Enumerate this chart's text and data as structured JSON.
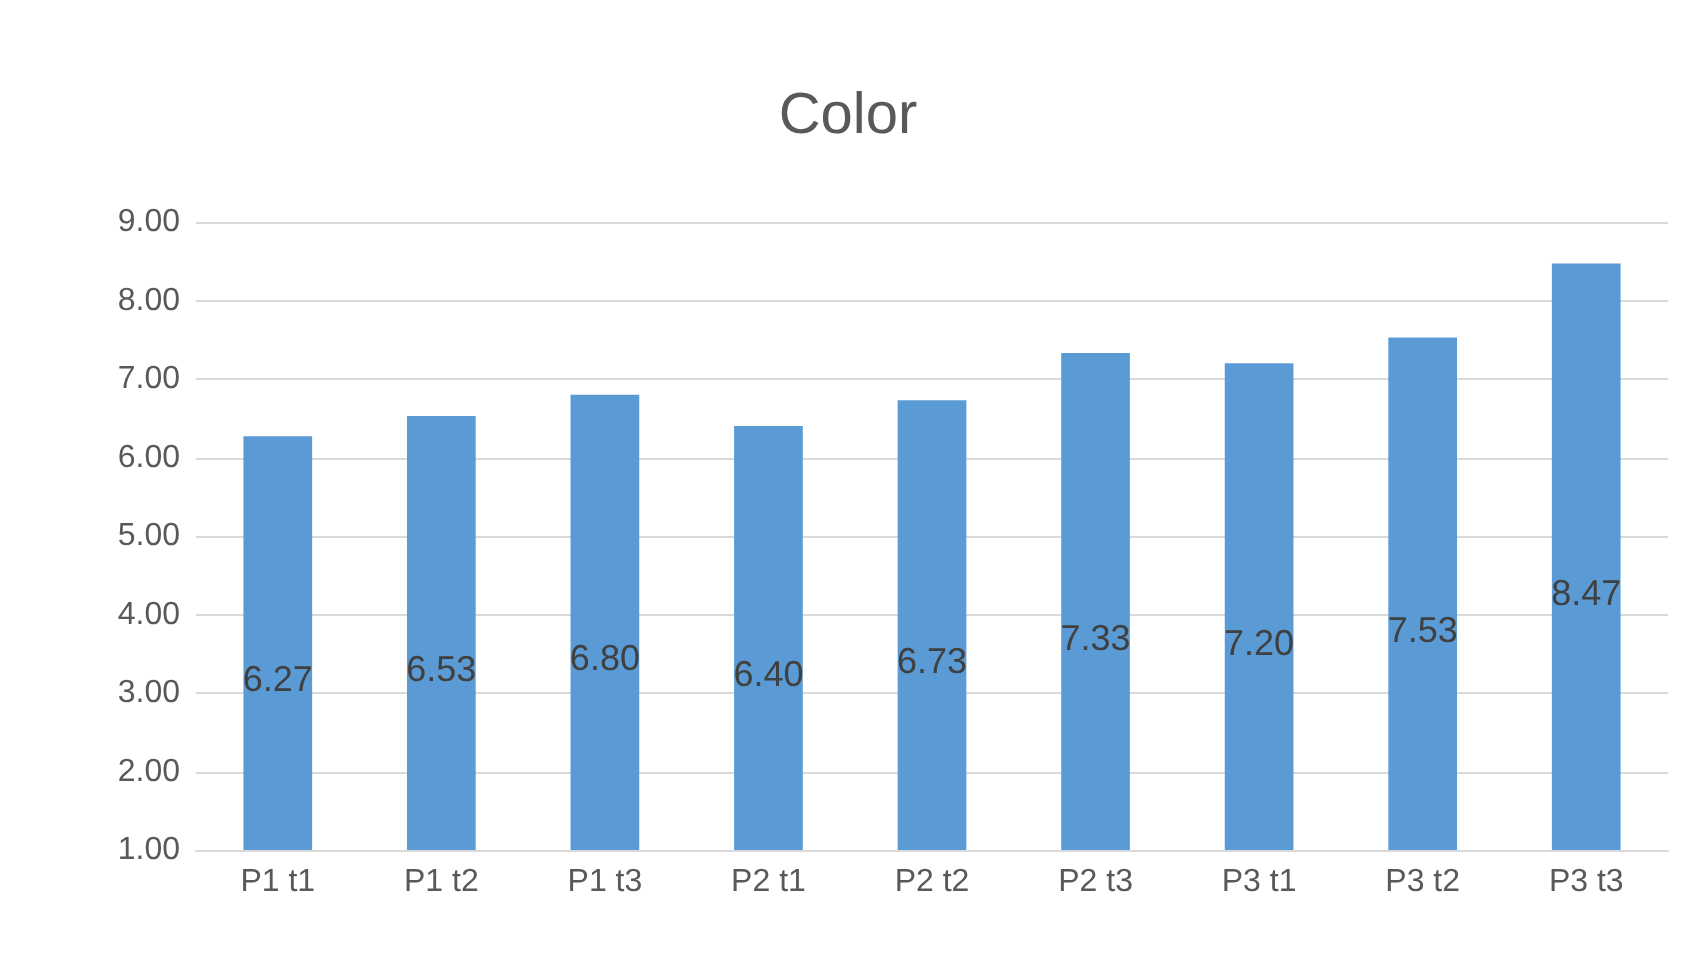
{
  "chart_data": {
    "type": "bar",
    "title": "Color",
    "categories": [
      "P1 t1",
      "P1 t2",
      "P1 t3",
      "P2 t1",
      "P2 t2",
      "P2 t3",
      "P3 t1",
      "P3 t2",
      "P3 t3"
    ],
    "values": [
      6.27,
      6.53,
      6.8,
      6.4,
      6.73,
      7.33,
      7.2,
      7.53,
      8.47
    ],
    "value_labels": [
      "6.27",
      "6.53",
      "6.80",
      "6.40",
      "6.73",
      "7.33",
      "7.20",
      "7.53",
      "8.47"
    ],
    "color": "#5b9bd5",
    "ylim": [
      1,
      9
    ],
    "yticks": [
      {
        "value": 1,
        "label": "1.00"
      },
      {
        "value": 2,
        "label": "2.00"
      },
      {
        "value": 3,
        "label": "3.00"
      },
      {
        "value": 4,
        "label": "4.00"
      },
      {
        "value": 5,
        "label": "5.00"
      },
      {
        "value": 6,
        "label": "6.00"
      },
      {
        "value": 7,
        "label": "7.00"
      },
      {
        "value": 8,
        "label": "8.00"
      },
      {
        "value": 9,
        "label": "9.00"
      }
    ],
    "grid": "y",
    "legend": false
  }
}
